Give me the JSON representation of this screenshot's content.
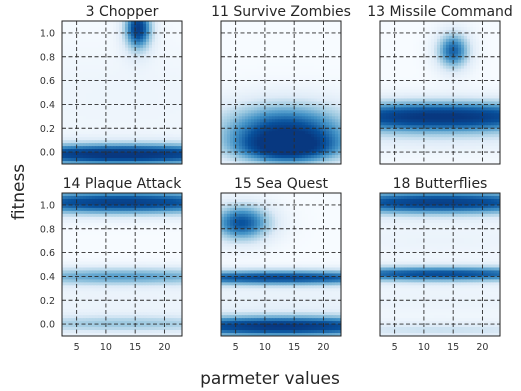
{
  "figure": {
    "xlabel": "parmeter values",
    "ylabel": "fitness"
  },
  "chart_data": [
    {
      "type": "heatmap",
      "title": "3 Chopper",
      "xticks": [
        5,
        10,
        15,
        20
      ],
      "yticks": [
        0.0,
        0.2,
        0.4,
        0.6,
        0.8,
        1.0
      ],
      "xlim": [
        2.5,
        23
      ],
      "ylim": [
        -0.1,
        1.1
      ],
      "grid": true,
      "density_bands": [
        {
          "x_center": 12.75,
          "x_sigma": 20,
          "y_center": -0.02,
          "y_sigma": 0.07,
          "intensity": 1.0
        },
        {
          "x_center": 15.5,
          "x_sigma": 1.8,
          "y_center": 1.04,
          "y_sigma": 0.14,
          "intensity": 0.95
        },
        {
          "x_center": 12.75,
          "x_sigma": 20,
          "y_center": 0.45,
          "y_sigma": 0.35,
          "intensity": 0.1
        }
      ]
    },
    {
      "type": "heatmap",
      "title": "11 Survive Zombies",
      "xticks": [
        5,
        10,
        15,
        20
      ],
      "yticks": [
        0.0,
        0.2,
        0.4,
        0.6,
        0.8,
        1.0
      ],
      "xlim": [
        2.5,
        23
      ],
      "ylim": [
        -0.1,
        1.1
      ],
      "grid": true,
      "density_bands": [
        {
          "x_center": 13.5,
          "x_sigma": 9,
          "y_center": 0.2,
          "y_sigma": 0.17,
          "intensity": 0.85
        },
        {
          "x_center": 14,
          "x_sigma": 7,
          "y_center": 0.02,
          "y_sigma": 0.1,
          "intensity": 0.65
        }
      ]
    },
    {
      "type": "heatmap",
      "title": "13 Missile Command",
      "xticks": [
        5,
        10,
        15,
        20
      ],
      "yticks": [
        0.0,
        0.2,
        0.4,
        0.6,
        0.8,
        1.0
      ],
      "xlim": [
        2.5,
        23
      ],
      "ylim": [
        -0.1,
        1.1
      ],
      "grid": true,
      "density_bands": [
        {
          "x_center": 12.75,
          "x_sigma": 20,
          "y_center": 0.3,
          "y_sigma": 0.1,
          "intensity": 1.0
        },
        {
          "x_center": 15,
          "x_sigma": 2.2,
          "y_center": 0.85,
          "y_sigma": 0.12,
          "intensity": 0.8
        },
        {
          "x_center": 12.75,
          "x_sigma": 20,
          "y_center": 0.1,
          "y_sigma": 0.1,
          "intensity": 0.15
        }
      ]
    },
    {
      "type": "heatmap",
      "title": "14 Plaque Attack",
      "xticks": [
        5,
        10,
        15,
        20
      ],
      "yticks": [
        0.0,
        0.2,
        0.4,
        0.6,
        0.8,
        1.0
      ],
      "xlim": [
        2.5,
        23
      ],
      "ylim": [
        -0.1,
        1.1
      ],
      "grid": true,
      "density_bands": [
        {
          "x_center": 12.75,
          "x_sigma": 20,
          "y_center": 1.02,
          "y_sigma": 0.08,
          "intensity": 0.95
        },
        {
          "x_center": 12.75,
          "x_sigma": 20,
          "y_center": 0.4,
          "y_sigma": 0.06,
          "intensity": 0.6
        },
        {
          "x_center": 12.75,
          "x_sigma": 20,
          "y_center": 0.0,
          "y_sigma": 0.06,
          "intensity": 0.45
        },
        {
          "x_center": 12.75,
          "x_sigma": 20,
          "y_center": 0.2,
          "y_sigma": 0.08,
          "intensity": 0.12
        }
      ]
    },
    {
      "type": "heatmap",
      "title": "15 Sea Quest",
      "xticks": [
        5,
        10,
        15,
        20
      ],
      "yticks": [
        0.0,
        0.2,
        0.4,
        0.6,
        0.8,
        1.0
      ],
      "xlim": [
        2.5,
        23
      ],
      "ylim": [
        -0.1,
        1.1
      ],
      "grid": true,
      "density_bands": [
        {
          "x_center": 12.75,
          "x_sigma": 20,
          "y_center": -0.02,
          "y_sigma": 0.07,
          "intensity": 1.0
        },
        {
          "x_center": 12.75,
          "x_sigma": 20,
          "y_center": 0.39,
          "y_sigma": 0.05,
          "intensity": 0.9
        },
        {
          "x_center": 6,
          "x_sigma": 4,
          "y_center": 0.85,
          "y_sigma": 0.12,
          "intensity": 0.85
        },
        {
          "x_center": 12.75,
          "x_sigma": 20,
          "y_center": 0.2,
          "y_sigma": 0.08,
          "intensity": 0.15
        }
      ]
    },
    {
      "type": "heatmap",
      "title": "18 Butterflies",
      "xticks": [
        5,
        10,
        15,
        20
      ],
      "yticks": [
        0.0,
        0.2,
        0.4,
        0.6,
        0.8,
        1.0
      ],
      "xlim": [
        2.5,
        23
      ],
      "ylim": [
        -0.1,
        1.1
      ],
      "grid": true,
      "density_bands": [
        {
          "x_center": 12.75,
          "x_sigma": 20,
          "y_center": 1.02,
          "y_sigma": 0.08,
          "intensity": 0.95
        },
        {
          "x_center": 12.75,
          "x_sigma": 20,
          "y_center": 0.42,
          "y_sigma": 0.05,
          "intensity": 0.85
        },
        {
          "x_center": 12.75,
          "x_sigma": 20,
          "y_center": -0.05,
          "y_sigma": 0.05,
          "intensity": 0.3
        },
        {
          "x_center": 12.75,
          "x_sigma": 20,
          "y_center": 0.2,
          "y_sigma": 0.12,
          "intensity": 0.12
        },
        {
          "x_center": 12.75,
          "x_sigma": 20,
          "y_center": 0.7,
          "y_sigma": 0.12,
          "intensity": 0.12
        }
      ]
    }
  ]
}
